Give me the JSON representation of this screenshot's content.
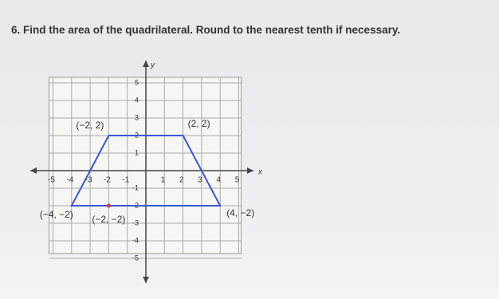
{
  "question": "6. Find the area of the quadrilateral. Round to the nearest tenth if necessary.",
  "graph": {
    "x_label": "x",
    "y_label": "y",
    "xticks": [
      -5,
      -4,
      -3,
      -2,
      -1,
      1,
      2,
      3,
      4,
      5
    ],
    "yticks": [
      5,
      4,
      3,
      2,
      1,
      -1,
      -2,
      -3,
      -4,
      -5
    ],
    "xlim": [
      -5,
      5
    ],
    "ylim": [
      -5,
      5
    ],
    "vertices": [
      {
        "x": -2,
        "y": 2,
        "label": "(−2, 2)"
      },
      {
        "x": 2,
        "y": 2,
        "label": "(2, 2)"
      },
      {
        "x": 4,
        "y": -2,
        "label": "(4, −2)"
      },
      {
        "x": -4,
        "y": -2,
        "label": "(−4, −2)"
      }
    ],
    "marked_point": {
      "x": -2,
      "y": -2,
      "label": "(−2, −2)"
    }
  }
}
